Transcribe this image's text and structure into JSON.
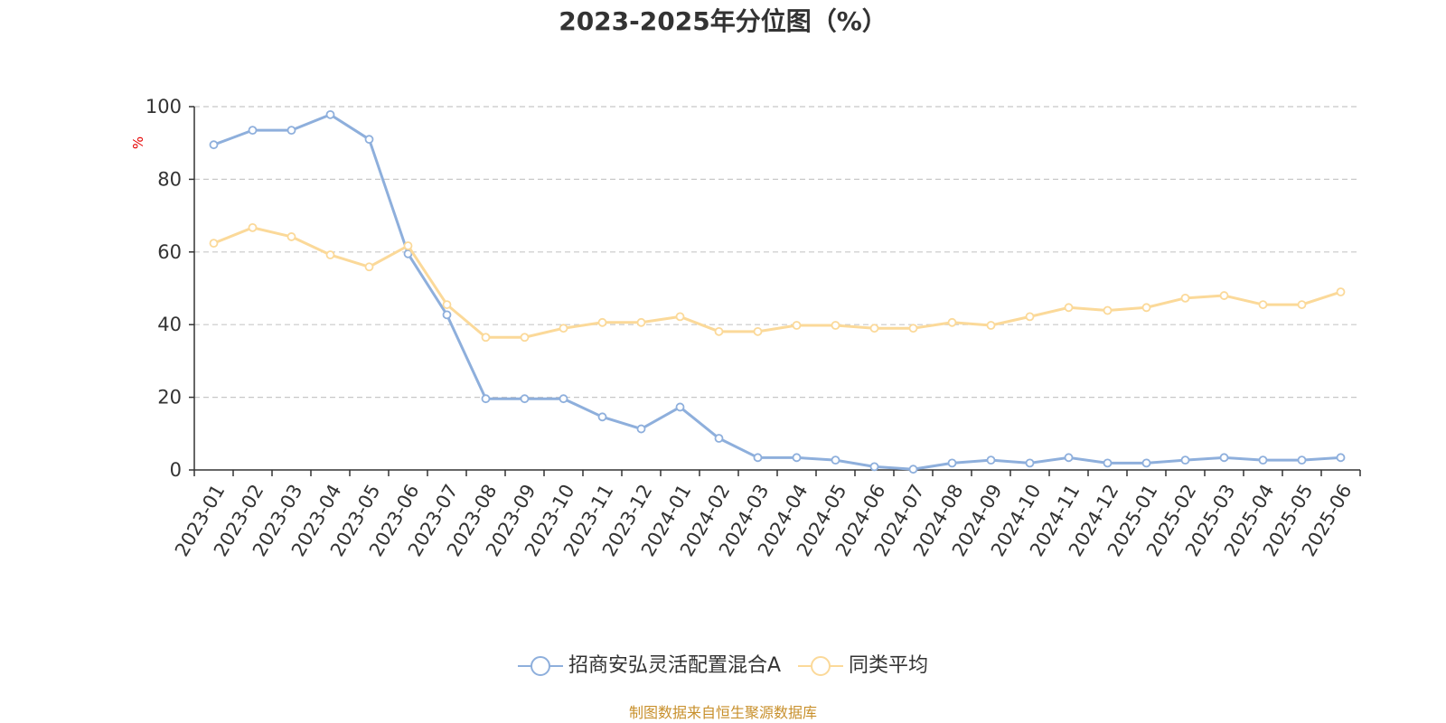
{
  "chart_data": {
    "type": "line",
    "title": "2023-2025年分位图（%）",
    "ylabel": "%",
    "xlabel": "",
    "ylim": [
      0,
      100
    ],
    "yticks": [
      0,
      20,
      40,
      60,
      80,
      100
    ],
    "grid": true,
    "legend_position": "bottom",
    "categories": [
      "2023-01",
      "2023-02",
      "2023-03",
      "2023-04",
      "2023-05",
      "2023-06",
      "2023-07",
      "2023-08",
      "2023-09",
      "2023-10",
      "2023-11",
      "2023-12",
      "2024-01",
      "2024-02",
      "2024-03",
      "2024-04",
      "2024-05",
      "2024-06",
      "2024-07",
      "2024-08",
      "2024-09",
      "2024-10",
      "2024-11",
      "2024-12",
      "2025-01",
      "2025-02",
      "2025-03",
      "2025-04",
      "2025-05",
      "2025-06"
    ],
    "series": [
      {
        "name": "招商安弘灵活配置混合A",
        "color": "#8eafdc",
        "values": [
          89.5,
          93.5,
          93.5,
          97.8,
          91.0,
          59.5,
          42.7,
          19.6,
          19.6,
          19.6,
          14.6,
          11.3,
          17.3,
          8.7,
          3.4,
          3.4,
          2.7,
          0.9,
          0.2,
          1.9,
          2.7,
          1.9,
          3.4,
          1.9,
          1.9,
          2.7,
          3.4,
          2.7,
          2.7,
          3.4
        ]
      },
      {
        "name": "同类平均",
        "color": "#fbd999",
        "values": [
          62.4,
          66.7,
          64.2,
          59.2,
          55.9,
          61.7,
          45.5,
          36.5,
          36.5,
          39.0,
          40.6,
          40.6,
          42.2,
          38.1,
          38.1,
          39.8,
          39.8,
          39.0,
          39.0,
          40.6,
          39.8,
          42.2,
          44.7,
          43.9,
          44.7,
          47.3,
          48.0,
          45.5,
          45.5,
          49.0
        ]
      }
    ]
  },
  "legend": {
    "items": [
      "招商安弘灵活配置混合A",
      "同类平均"
    ]
  },
  "footer": {
    "source": "制图数据来自恒生聚源数据库"
  },
  "colors": {
    "axis": "#333333",
    "grid": "#c8c8c8",
    "ylabel": "#e60000",
    "source": "#c8902c"
  }
}
